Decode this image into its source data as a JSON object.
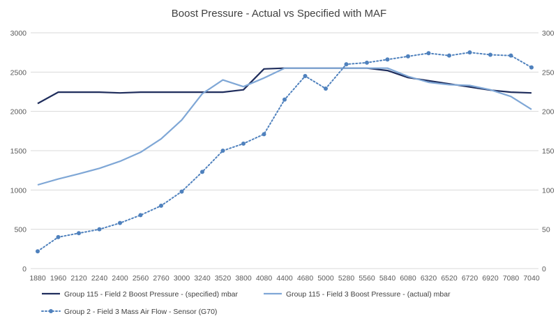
{
  "chart_data": {
    "type": "line",
    "title": "Boost Pressure - Actual vs Specified with MAF",
    "categories": [
      "1880",
      "1960",
      "2120",
      "2240",
      "2400",
      "2560",
      "2760",
      "3000",
      "3240",
      "3520",
      "3800",
      "4080",
      "4400",
      "4680",
      "5000",
      "5280",
      "5560",
      "5840",
      "6080",
      "6320",
      "6520",
      "6720",
      "6920",
      "7080",
      "7040"
    ],
    "y_left": {
      "ylim": [
        0,
        3000
      ],
      "ticks": [
        "0",
        "500",
        "1000",
        "1500",
        "2000",
        "2500",
        "3000"
      ]
    },
    "y_right": {
      "ylim": [
        0,
        300
      ],
      "ticks": [
        "0",
        "50",
        "100",
        "150",
        "200",
        "250",
        "300"
      ]
    },
    "grid": true,
    "legend_position": "bottom",
    "series": [
      {
        "name": "Group 115 - Field 2 Boost Pressure - (specified)  mbar",
        "axis": "left",
        "color": "#1f2d5c",
        "style": "solid",
        "values": [
          2100,
          2245,
          2245,
          2245,
          2235,
          2245,
          2245,
          2245,
          2245,
          2245,
          2275,
          2540,
          2550,
          2550,
          2550,
          2550,
          2550,
          2520,
          2430,
          2390,
          2350,
          2310,
          2270,
          2245,
          2235
        ]
      },
      {
        "name": "Group 115 - Field 3 Boost Pressure - (actual)  mbar",
        "axis": "left",
        "color": "#7fa7d6",
        "style": "solid",
        "values": [
          1065,
          1140,
          1205,
          1275,
          1365,
          1480,
          1650,
          1890,
          2225,
          2400,
          2315,
          2425,
          2550,
          2550,
          2550,
          2550,
          2550,
          2550,
          2445,
          2370,
          2340,
          2330,
          2275,
          2190,
          2025
        ]
      },
      {
        "name": "Group 2 - Field 3 Mass Air Flow - Sensor (G70)",
        "axis": "right",
        "color": "#4f81bd",
        "style": "dotted-markers",
        "values": [
          22,
          40,
          45,
          50,
          58,
          68,
          80,
          98,
          123,
          150,
          159,
          171,
          215,
          245,
          229,
          260,
          262,
          266,
          270,
          274,
          271,
          275,
          272,
          271,
          256
        ]
      }
    ]
  }
}
